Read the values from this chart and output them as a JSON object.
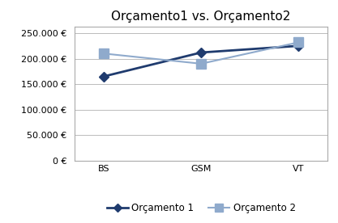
{
  "title": "Orçamento1 vs. Orçamento2",
  "categories": [
    "BS",
    "GSM",
    "VT"
  ],
  "series": [
    {
      "label": "Orçamento 1",
      "values": [
        165000,
        212000,
        225000
      ],
      "color": "#1F3B6E",
      "marker": "D",
      "markersize": 6,
      "linewidth": 2.0
    },
    {
      "label": "Orçamento 2",
      "values": [
        210000,
        190000,
        232000
      ],
      "color": "#8FAACC",
      "marker": "s",
      "markersize": 8,
      "linewidth": 1.5
    }
  ],
  "ylim": [
    0,
    262500
  ],
  "yticks": [
    0,
    50000,
    100000,
    150000,
    200000,
    250000
  ],
  "ytick_labels": [
    "0 €",
    "50.000 €",
    "100.000 €",
    "150.000 €",
    "200.000 €",
    "250.000 €"
  ],
  "background_color": "#FFFFFF",
  "plot_bg_color": "#FFFFFF",
  "grid_color": "#BBBBBB",
  "border_color": "#AAAAAA",
  "title_fontsize": 11,
  "tick_fontsize": 8,
  "legend_fontsize": 8.5
}
